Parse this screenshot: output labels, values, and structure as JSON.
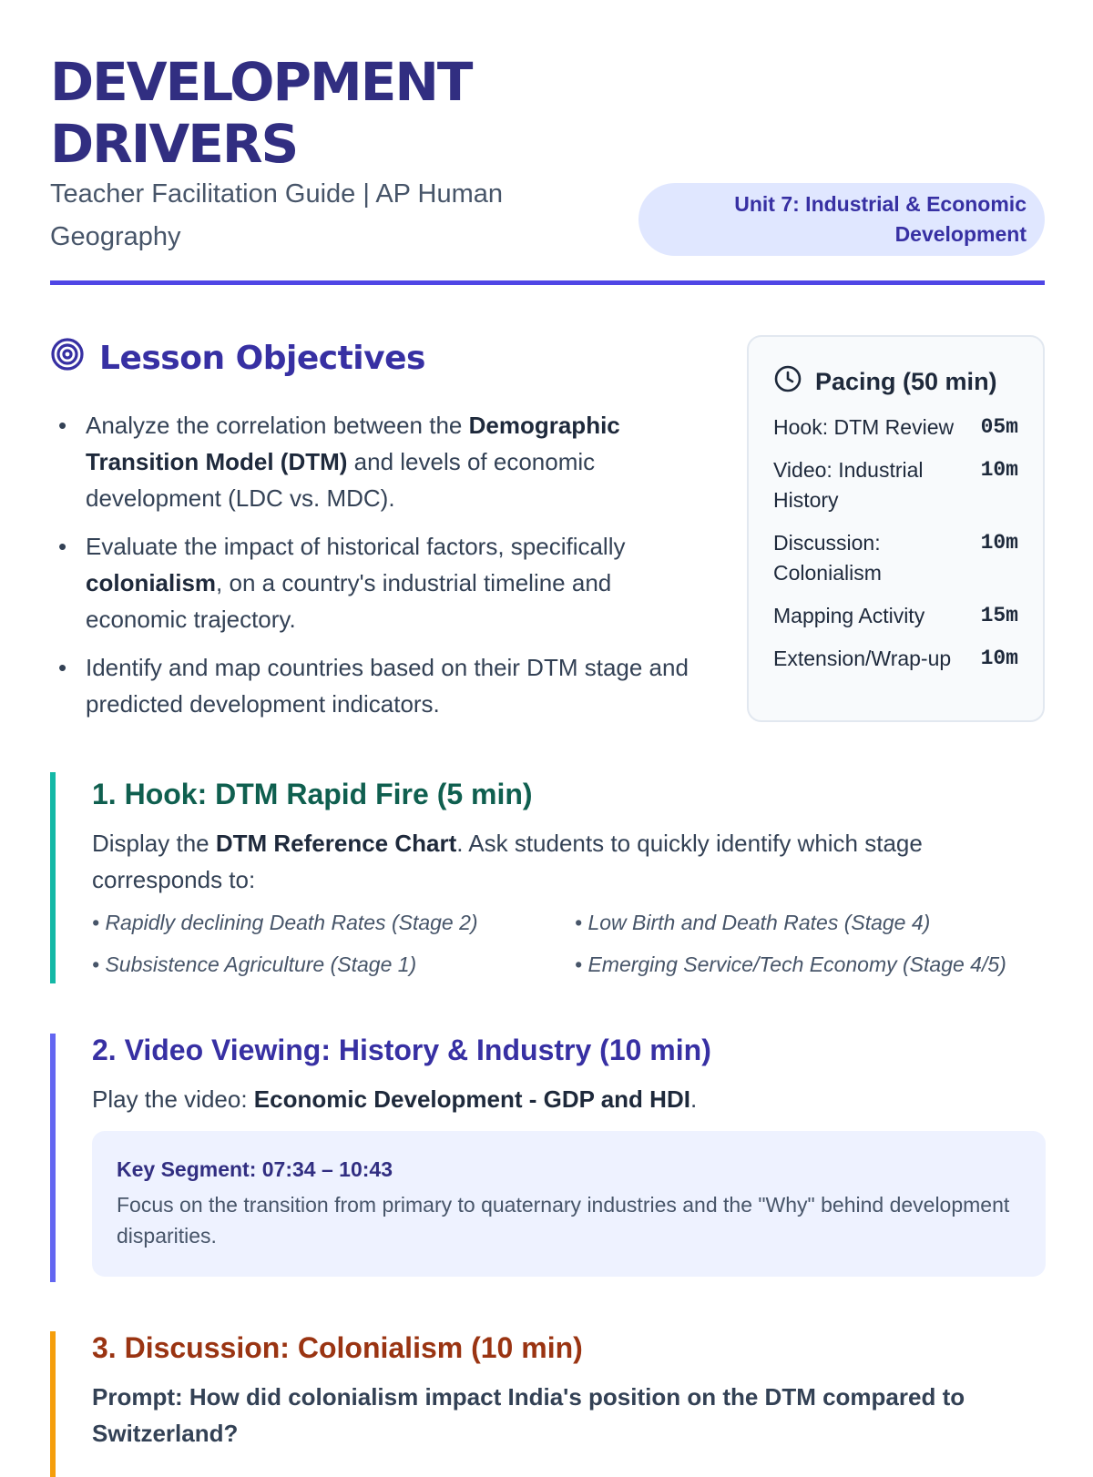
{
  "header": {
    "title": "DEVELOPMENT DRIVERS",
    "subtitle": "Teacher Facilitation Guide | AP Human Geography",
    "badge": "Unit 7: Industrial & Economic Development"
  },
  "colors": {
    "primary": "#312e81",
    "accent": "#4f46e5",
    "hook": "#14b8a6",
    "video": "#6366f1",
    "discussion": "#f59e0b"
  },
  "objectives": {
    "heading": "Lesson Objectives",
    "icon": "target-icon",
    "items": [
      {
        "pre": "Analyze the correlation between the ",
        "bold": "Demographic Transition Model (DTM)",
        "post": " and levels of economic development (LDC vs. MDC)."
      },
      {
        "pre": "Evaluate the impact of historical factors, specifically ",
        "bold": "colonialism",
        "post": ", on a country's industrial timeline and economic trajectory."
      },
      {
        "pre": "Identify and map countries based on their DTM stage and predicted development indicators.",
        "bold": "",
        "post": ""
      }
    ]
  },
  "pacing": {
    "heading": "Pacing (50 min)",
    "icon": "clock-icon",
    "rows": [
      {
        "label": "Hook: DTM Review",
        "time": "05m"
      },
      {
        "label": "Video: Industrial History",
        "time": "10m"
      },
      {
        "label": "Discussion: Colonialism",
        "time": "10m"
      },
      {
        "label": "Mapping Activity",
        "time": "15m"
      },
      {
        "label": "Extension/Wrap-up",
        "time": "10m"
      }
    ]
  },
  "hook": {
    "heading": "1. Hook: DTM Rapid Fire (5 min)",
    "pre": "Display the ",
    "bold": "DTM Reference Chart",
    "post": ". Ask students to quickly identify which stage corresponds to:",
    "items": [
      "• Rapidly declining Death Rates (Stage 2)",
      "• Low Birth and Death Rates (Stage 4)",
      "• Subsistence Agriculture (Stage 1)",
      "• Emerging Service/Tech Economy (Stage 4/5)"
    ]
  },
  "video": {
    "heading": "2. Video Viewing: History & Industry (10 min)",
    "pre": "Play the video: ",
    "bold": "Economic Development - GDP and HDI",
    "post": ".",
    "key_label": "Key Segment: 07:34 – 10:43",
    "key_text": "Focus on the transition from primary to quaternary industries and the \"Why\" behind development disparities."
  },
  "discussion": {
    "heading": "3. Discussion: Colonialism (10 min)",
    "prompt": "Prompt: How did colonialism impact India's position on the DTM compared to Switzerland?"
  }
}
